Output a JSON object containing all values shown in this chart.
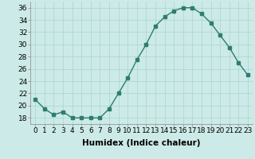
{
  "x": [
    0,
    1,
    2,
    3,
    4,
    5,
    6,
    7,
    8,
    9,
    10,
    11,
    12,
    13,
    14,
    15,
    16,
    17,
    18,
    19,
    20,
    21,
    22,
    23
  ],
  "y": [
    21,
    19.5,
    18.5,
    19,
    18,
    18,
    18,
    18,
    19.5,
    22,
    24.5,
    27.5,
    30,
    33,
    34.5,
    35.5,
    36,
    36,
    35,
    33.5,
    31.5,
    29.5,
    27,
    25
  ],
  "line_color": "#2e7d6e",
  "marker": "s",
  "marker_size": 2.5,
  "bg_color": "#cceae7",
  "grid_color": "#aad4d0",
  "xlabel": "Humidex (Indice chaleur)",
  "ylim": [
    17,
    37
  ],
  "xlim": [
    -0.5,
    23.5
  ],
  "yticks": [
    18,
    20,
    22,
    24,
    26,
    28,
    30,
    32,
    34,
    36
  ],
  "xtick_labels": [
    "0",
    "1",
    "2",
    "3",
    "4",
    "5",
    "6",
    "7",
    "8",
    "9",
    "10",
    "11",
    "12",
    "13",
    "14",
    "15",
    "16",
    "17",
    "18",
    "19",
    "20",
    "21",
    "22",
    "23"
  ],
  "tick_fontsize": 6.5,
  "xlabel_fontsize": 7.5
}
